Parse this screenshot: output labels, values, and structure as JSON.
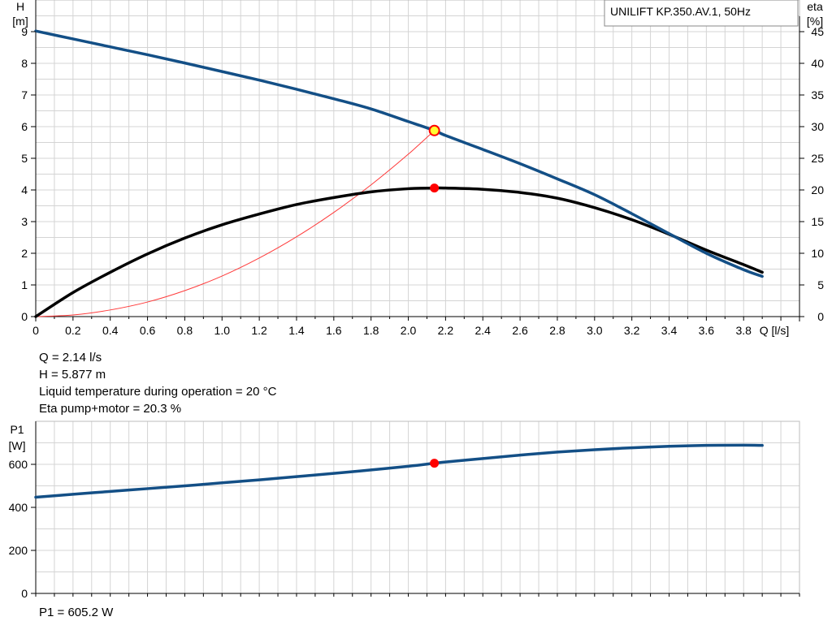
{
  "colors": {
    "background": "#ffffff",
    "grid": "#d4d4d4",
    "axis": "#000000",
    "curve_blue": "#134f86",
    "curve_black": "#000000",
    "system_curve": "#ff3a3a",
    "operating_point": "#ff0000",
    "operating_point_yellow": "#ffff33"
  },
  "chart_data": [
    {
      "type": "line",
      "title": "UNILIFT KP.350.AV.1, 50Hz",
      "xlabel": "Q [l/s]",
      "ylabel": "H",
      "ylabel_unit": "[m]",
      "y2label": "eta",
      "y2label_unit": "[%]",
      "xlim": [
        0,
        4.1
      ],
      "ylim": [
        0,
        10
      ],
      "y2lim": [
        0,
        50
      ],
      "grid": true,
      "x_ticks": [
        "0",
        "0.2",
        "0.4",
        "0.6",
        "0.8",
        "1.0",
        "1.2",
        "1.4",
        "1.6",
        "1.8",
        "2.0",
        "2.2",
        "2.4",
        "2.6",
        "2.8",
        "3.0",
        "3.2",
        "3.4",
        "3.6",
        "3.8"
      ],
      "y_ticks": [
        "0",
        "1",
        "2",
        "3",
        "4",
        "5",
        "6",
        "7",
        "8",
        "9"
      ],
      "y2_ticks": [
        "0",
        "5",
        "10",
        "15",
        "20",
        "25",
        "30",
        "35",
        "40",
        "45"
      ],
      "series": [
        {
          "role": "head",
          "axis": "left",
          "x": [
            0,
            0.2,
            0.4,
            0.6,
            0.8,
            1.0,
            1.2,
            1.4,
            1.6,
            1.8,
            2.0,
            2.14,
            2.2,
            2.4,
            2.6,
            2.8,
            3.0,
            3.2,
            3.4,
            3.6,
            3.8,
            3.9
          ],
          "y": [
            9.02,
            8.77,
            8.52,
            8.27,
            8.01,
            7.74,
            7.47,
            7.18,
            6.88,
            6.56,
            6.16,
            5.88,
            5.72,
            5.28,
            4.83,
            4.35,
            3.85,
            3.25,
            2.62,
            2.0,
            1.48,
            1.27
          ]
        },
        {
          "role": "efficiency",
          "axis": "right",
          "x": [
            0,
            0.2,
            0.4,
            0.6,
            0.8,
            1.0,
            1.2,
            1.4,
            1.6,
            1.8,
            2.0,
            2.14,
            2.2,
            2.4,
            2.6,
            2.8,
            3.0,
            3.2,
            3.4,
            3.6,
            3.8,
            3.9
          ],
          "y": [
            0,
            3.8,
            7.0,
            9.9,
            12.4,
            14.5,
            16.2,
            17.7,
            18.8,
            19.7,
            20.2,
            20.3,
            20.3,
            20.1,
            19.6,
            18.7,
            17.2,
            15.3,
            13.0,
            10.5,
            8.2,
            7.0
          ]
        },
        {
          "role": "system",
          "axis": "left",
          "x": [
            0,
            0.2,
            0.4,
            0.6,
            0.8,
            1.0,
            1.2,
            1.4,
            1.6,
            1.8,
            2.0,
            2.14
          ],
          "y": [
            0,
            0.05,
            0.21,
            0.46,
            0.82,
            1.28,
            1.85,
            2.52,
            3.29,
            4.16,
            5.13,
            5.877
          ]
        }
      ],
      "operating_point": {
        "q": 2.14,
        "h": 5.877,
        "eta": 20.3
      }
    },
    {
      "type": "line",
      "ylabel": "P1",
      "ylabel_unit": "[W]",
      "xlim": [
        0,
        4.1
      ],
      "ylim": [
        0,
        800
      ],
      "grid": true,
      "y_ticks": [
        "0",
        "200",
        "400",
        "600"
      ],
      "series": [
        {
          "role": "power",
          "x": [
            0,
            0.2,
            0.4,
            0.6,
            0.8,
            1.0,
            1.2,
            1.4,
            1.6,
            1.8,
            2.0,
            2.14,
            2.2,
            2.4,
            2.6,
            2.8,
            3.0,
            3.2,
            3.4,
            3.6,
            3.8,
            3.9
          ],
          "y": [
            447,
            461,
            474,
            487,
            500,
            514,
            528,
            543,
            558,
            574,
            591,
            605.2,
            611,
            627,
            643,
            657,
            668,
            677,
            684,
            688,
            689,
            688
          ]
        }
      ],
      "operating_point": {
        "q": 2.14,
        "p1": 605.2
      }
    }
  ],
  "info": {
    "q": "Q = 2.14 l/s",
    "h": "H = 5.877 m",
    "liquid_temp": "Liquid temperature during operation = 20 °C",
    "eta": "Eta pump+motor = 20.3 %",
    "p1": "P1 = 605.2 W"
  }
}
